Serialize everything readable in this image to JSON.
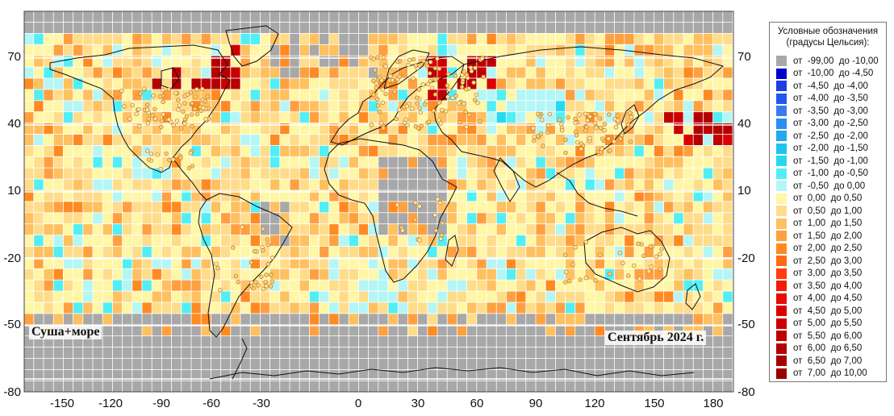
{
  "map": {
    "corner_label": "Суша+море",
    "period_label": "Сентябрь 2024 г.",
    "x_ticks": [
      "-150",
      "-120",
      "-90",
      "-60",
      "-30",
      "0",
      "30",
      "60",
      "90",
      "120",
      "150",
      "180"
    ],
    "y_ticks": [
      "70",
      "40",
      "10",
      "-20",
      "-50",
      "-80"
    ]
  },
  "legend": {
    "title_line1": "Условные обозначения",
    "title_line2": "(градусы Цельсия):",
    "items": [
      {
        "label": "от  -99,00  до -10,00",
        "color": "#a8a8a8"
      },
      {
        "label": "от  -10,00  до -4,50",
        "color": "#0000cc"
      },
      {
        "label": "от  -4,50  до -4,00",
        "color": "#1c3ee6"
      },
      {
        "label": "от  -4,00  до -3,50",
        "color": "#2456ee"
      },
      {
        "label": "от  -3,50  до -3,00",
        "color": "#3a7cf0"
      },
      {
        "label": "от  -3,00  до -2,50",
        "color": "#2a8ef2"
      },
      {
        "label": "от  -2,50  до -2,00",
        "color": "#22a8f0"
      },
      {
        "label": "от  -2,00  до -1,50",
        "color": "#1ec4ee"
      },
      {
        "label": "от  -1,50  до -1,00",
        "color": "#28d8f2"
      },
      {
        "label": "от  -1,00  до -0,50",
        "color": "#52eef6"
      },
      {
        "label": "от  -0,50  до 0,00",
        "color": "#b4f6f6"
      },
      {
        "label": "от  0,00  до 0,50",
        "color": "#fff6a6"
      },
      {
        "label": "от  0,50  до 1,00",
        "color": "#ffdc8a"
      },
      {
        "label": "от  1,00  до 1,50",
        "color": "#ffc060"
      },
      {
        "label": "от  1,50  до 2,00",
        "color": "#ffa040"
      },
      {
        "label": "от  2,00  до 2,50",
        "color": "#ff8a22"
      },
      {
        "label": "от  2,50  до 3,00",
        "color": "#ff6a14"
      },
      {
        "label": "от  3,00  до 3,50",
        "color": "#ff3c0a"
      },
      {
        "label": "от  3,50  до 4,00",
        "color": "#f41c06"
      },
      {
        "label": "от  4,00  до 4,50",
        "color": "#e80a04"
      },
      {
        "label": "от  4,50  до 5,00",
        "color": "#dc0000"
      },
      {
        "label": "от  5,00  до 5,50",
        "color": "#cc0000"
      },
      {
        "label": "от  5,50  до 6,00",
        "color": "#c00000"
      },
      {
        "label": "от  6,00  до 6,50",
        "color": "#b40000"
      },
      {
        "label": "от  6,50  до 7,00",
        "color": "#a80000"
      },
      {
        "label": "от  7,00  до 10,00",
        "color": "#9a0000"
      }
    ]
  }
}
